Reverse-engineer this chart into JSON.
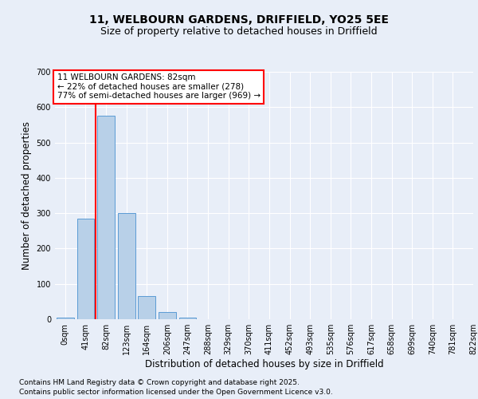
{
  "title_line1": "11, WELBOURN GARDENS, DRIFFIELD, YO25 5EE",
  "title_line2": "Size of property relative to detached houses in Driffield",
  "xlabel": "Distribution of detached houses by size in Driffield",
  "ylabel": "Number of detached properties",
  "bin_labels": [
    "0sqm",
    "41sqm",
    "82sqm",
    "123sqm",
    "164sqm",
    "206sqm",
    "247sqm",
    "288sqm",
    "329sqm",
    "370sqm",
    "411sqm",
    "452sqm",
    "493sqm",
    "535sqm",
    "576sqm",
    "617sqm",
    "658sqm",
    "699sqm",
    "740sqm",
    "781sqm",
    "822sqm"
  ],
  "bar_values": [
    5,
    285,
    575,
    300,
    65,
    20,
    5,
    0,
    0,
    0,
    0,
    0,
    0,
    0,
    0,
    0,
    0,
    0,
    0,
    0
  ],
  "bar_color": "#b8d0e8",
  "bar_edge_color": "#5b9bd5",
  "vline_color": "red",
  "annotation_text": "11 WELBOURN GARDENS: 82sqm\n← 22% of detached houses are smaller (278)\n77% of semi-detached houses are larger (969) →",
  "annotation_box_color": "white",
  "annotation_box_edge_color": "red",
  "ylim": [
    0,
    700
  ],
  "yticks": [
    0,
    100,
    200,
    300,
    400,
    500,
    600,
    700
  ],
  "background_color": "#e8eef8",
  "plot_background": "#e8eef8",
  "grid_color": "white",
  "footer_line1": "Contains HM Land Registry data © Crown copyright and database right 2025.",
  "footer_line2": "Contains public sector information licensed under the Open Government Licence v3.0.",
  "title_fontsize": 10,
  "subtitle_fontsize": 9,
  "axis_label_fontsize": 8.5,
  "tick_fontsize": 7,
  "annotation_fontsize": 7.5,
  "footer_fontsize": 6.5
}
